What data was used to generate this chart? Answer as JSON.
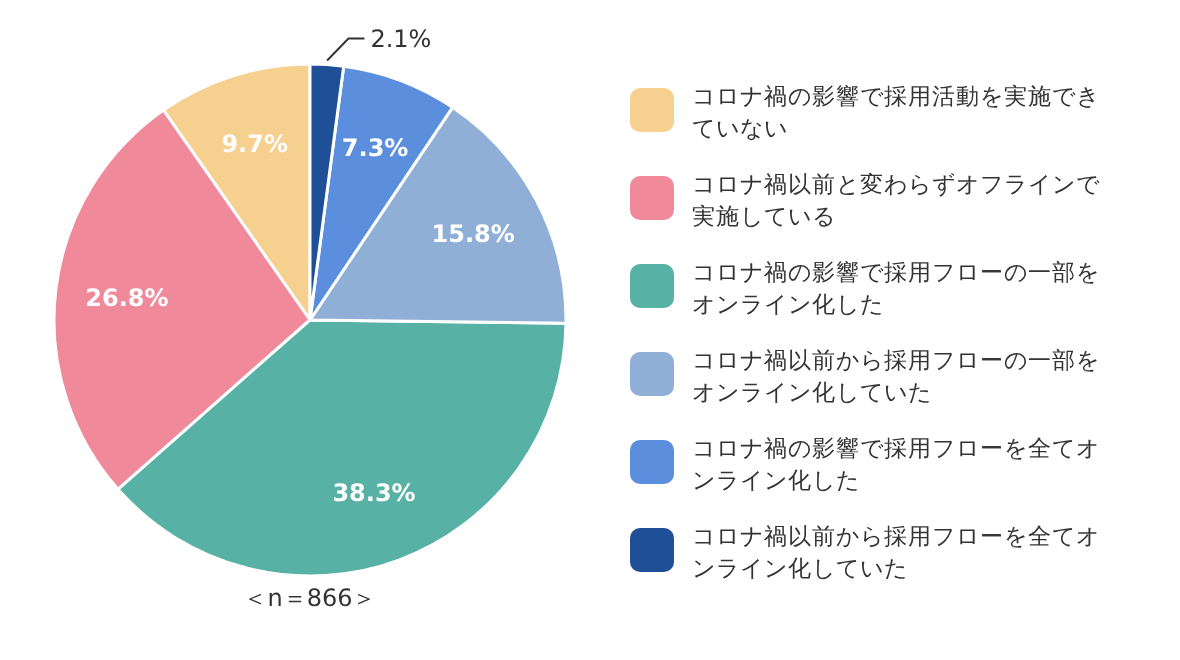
{
  "chart_data": {
    "type": "pie",
    "categories": [
      "コロナ禍の影響で採用活動を実施できていない",
      "コロナ禍以前と変わらずオフラインで実施している",
      "コロナ禍の影響で採用フローの一部をオンライン化した",
      "コロナ禍以前から採用フローの一部をオンライン化していた",
      "コロナ禍の影響で採用フローを全てオンライン化した",
      "コロナ禍以前から採用フローを全てオンライン化していた"
    ],
    "values": [
      9.7,
      26.8,
      38.3,
      15.8,
      7.3,
      2.1
    ],
    "colors": [
      "#f6d08f",
      "#f08a9b",
      "#57b1a4",
      "#8fafd7",
      "#5b8fde",
      "#1f4f96"
    ],
    "value_labels": [
      "9.7%",
      "26.8%",
      "38.3%",
      "15.8%",
      "7.3%",
      "2.1%"
    ],
    "annotations": [
      "＜n＝866＞"
    ],
    "legend": "right"
  }
}
